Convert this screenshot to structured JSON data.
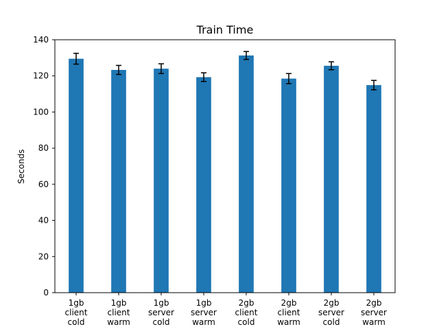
{
  "chart_data": {
    "type": "bar",
    "title": "Train Time",
    "xlabel": "",
    "ylabel": "Seconds",
    "ylim": [
      0,
      140
    ],
    "yticks": [
      0,
      20,
      40,
      60,
      80,
      100,
      120,
      140
    ],
    "grid": false,
    "bar_color": "#1f77b4",
    "errorbar_color": "#000000",
    "categories": [
      [
        "1gb",
        "client",
        "cold"
      ],
      [
        "1gb",
        "client",
        "warm"
      ],
      [
        "1gb",
        "server",
        "cold"
      ],
      [
        "1gb",
        "server",
        "warm"
      ],
      [
        "2gb",
        "client",
        "cold"
      ],
      [
        "2gb",
        "client",
        "warm"
      ],
      [
        "2gb",
        "server",
        "cold"
      ],
      [
        "2gb",
        "server",
        "warm"
      ]
    ],
    "values": [
      129.5,
      123.3,
      124.0,
      119.3,
      131.3,
      118.5,
      125.6,
      114.9
    ],
    "errors": [
      3.0,
      2.5,
      2.7,
      2.4,
      2.2,
      2.8,
      2.2,
      2.6
    ]
  }
}
